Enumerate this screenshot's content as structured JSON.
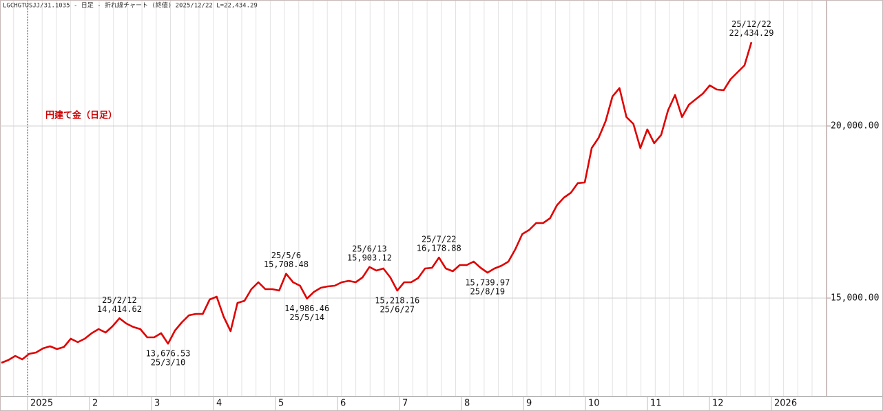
{
  "chart_data": {
    "type": "line",
    "title": "LGCHGTUSJJ/31.1035 - 日足 - 折れ線チャート (終値)  2025/12/22 L=22,434.29",
    "label": "円建て金（日足）",
    "color": "#e00000",
    "x_labels": [
      "2025",
      "2",
      "3",
      "4",
      "5",
      "6",
      "7",
      "8",
      "9",
      "10",
      "11",
      "12",
      "2026"
    ],
    "values": [
      13120,
      13200,
      13320,
      13220,
      13380,
      13420,
      13540,
      13600,
      13520,
      13580,
      13820,
      13720,
      13820,
      13980,
      14100,
      14000,
      14180,
      14414.62,
      14260,
      14160,
      14100,
      13860,
      13860,
      13980,
      13676.53,
      14060,
      14300,
      14500,
      14540,
      14540,
      14960,
      15040,
      14460,
      14040,
      14860,
      14920,
      15260,
      15460,
      15260,
      15260,
      15220,
      15708.48,
      15460,
      15360,
      14986.46,
      15180,
      15300,
      15340,
      15360,
      15460,
      15500,
      15460,
      15600,
      15903.12,
      15800,
      15860,
      15600,
      15218.16,
      15460,
      15460,
      15580,
      15860,
      15880,
      16178.88,
      15860,
      15780,
      15960,
      15960,
      16060,
      15880,
      15739.97,
      15860,
      15940,
      16060,
      16420,
      16860,
      16980,
      17180,
      17180,
      17320,
      17700,
      17920,
      18060,
      18340,
      18360,
      19360,
      19660,
      20140,
      20860,
      21100,
      20260,
      20060,
      19360,
      19900,
      19500,
      19740,
      20460,
      20900,
      20260,
      20620,
      20780,
      20940,
      21180,
      21060,
      21040,
      21360,
      21560,
      21760,
      22434.29
    ],
    "annotations": [
      {
        "date": "25/2/12",
        "value": 14414.62,
        "label": "14,414.62"
      },
      {
        "date": "25/3/10",
        "value": 13676.53,
        "label": "13,676.53"
      },
      {
        "date": "25/5/6",
        "value": 15708.48,
        "label": "15,708.48"
      },
      {
        "date": "25/5/14",
        "value": 14986.46,
        "label": "14,986.46"
      },
      {
        "date": "25/6/13",
        "value": 15903.12,
        "label": "15,903.12"
      },
      {
        "date": "25/6/27",
        "value": 15218.16,
        "label": "15,218.16"
      },
      {
        "date": "25/7/22",
        "value": 16178.88,
        "label": "16,178.88"
      },
      {
        "date": "25/8/19",
        "value": 15739.97,
        "label": "15,739.97"
      },
      {
        "date": "25/12/22",
        "value": 22434.29,
        "label": "22,434.29"
      }
    ],
    "ylim": [
      12160,
      23660
    ],
    "yticks": [
      {
        "value": 15000,
        "label": "15,000.00"
      },
      {
        "value": 20000,
        "label": "20,000.00"
      }
    ],
    "grid": true
  }
}
